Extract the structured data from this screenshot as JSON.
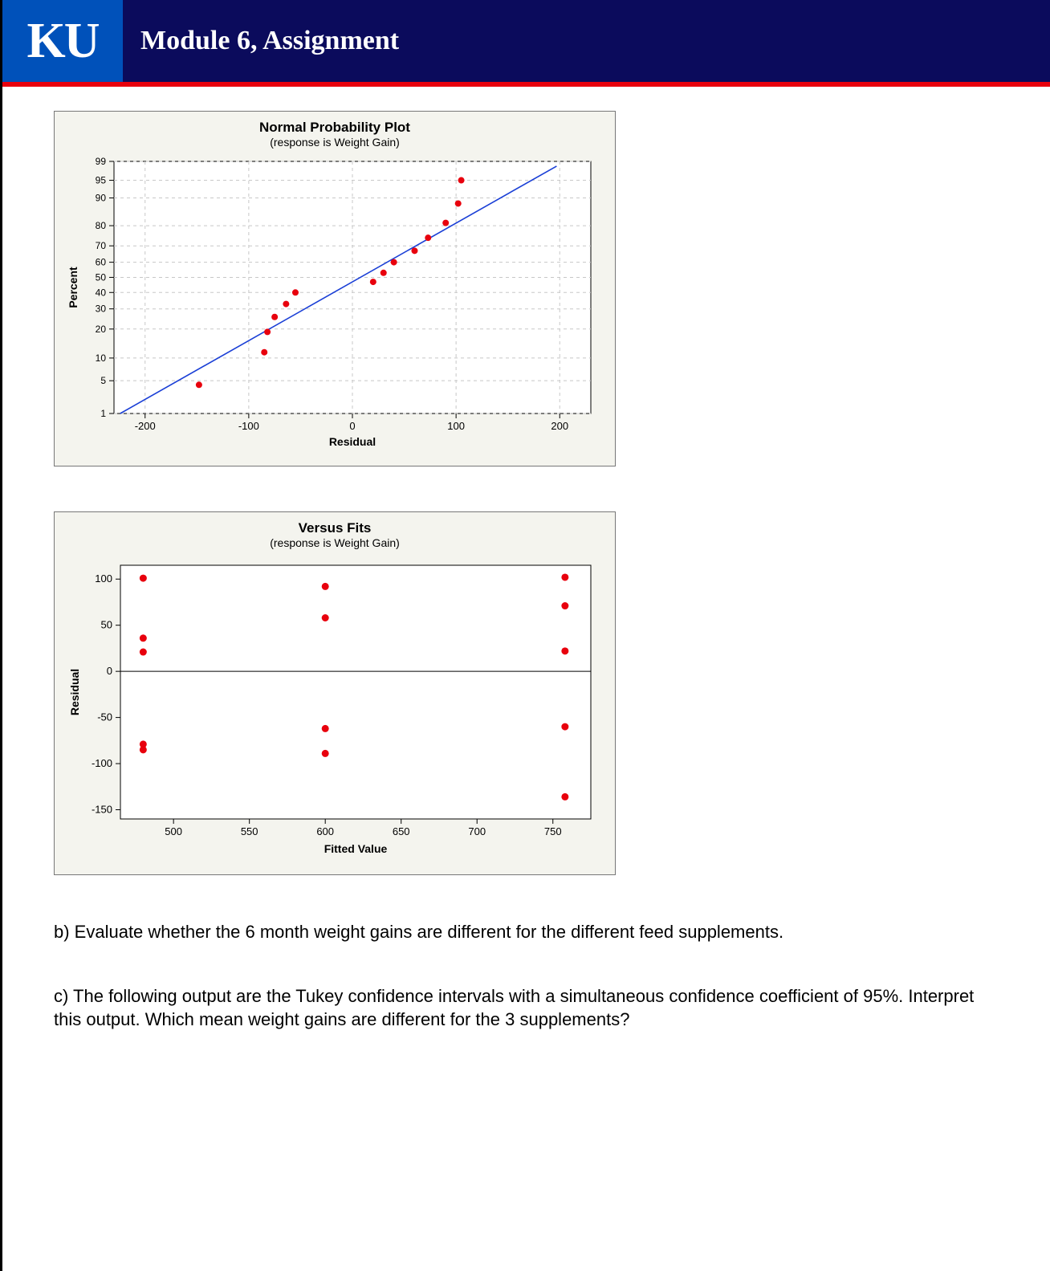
{
  "header": {
    "logo_text": "KU",
    "title": "Module 6, Assignment"
  },
  "chart1": {
    "type": "normal-probability-plot",
    "title": "Normal Probability Plot",
    "subtitle": "(response is Weight Gain)",
    "xlabel": "Residual",
    "ylabel": "Percent",
    "x_ticks": [
      -200,
      -100,
      0,
      100,
      200
    ],
    "y_ticks": [
      1,
      5,
      10,
      20,
      30,
      40,
      50,
      60,
      70,
      80,
      90,
      95,
      99
    ],
    "line_color": "#1a3fd6",
    "point_color": "#e8000d",
    "grid_color": "#c8c8c8",
    "background_color": "#f4f4ee",
    "plot_area_color": "#ffffff",
    "line": {
      "x1": -224,
      "p1": 1,
      "x2": 197,
      "p2": 98
    },
    "points": [
      {
        "x": -148,
        "p": 4.5
      },
      {
        "x": -85,
        "p": 12
      },
      {
        "x": -82,
        "p": 19
      },
      {
        "x": -75,
        "p": 26
      },
      {
        "x": -64,
        "p": 33
      },
      {
        "x": -55,
        "p": 40
      },
      {
        "x": 20,
        "p": 47
      },
      {
        "x": 30,
        "p": 53
      },
      {
        "x": 40,
        "p": 60
      },
      {
        "x": 60,
        "p": 67
      },
      {
        "x": 73,
        "p": 74
      },
      {
        "x": 90,
        "p": 81
      },
      {
        "x": 102,
        "p": 88
      },
      {
        "x": 105,
        "p": 95
      }
    ]
  },
  "chart2": {
    "type": "residual-vs-fits",
    "title": "Versus Fits",
    "subtitle": "(response is Weight Gain)",
    "xlabel": "Fitted Value",
    "ylabel": "Residual",
    "x_ticks": [
      500,
      550,
      600,
      650,
      700,
      750
    ],
    "y_ticks": [
      -150,
      -100,
      -50,
      0,
      50,
      100
    ],
    "zero_line_y": 0,
    "point_color": "#e8000d",
    "axis_color": "#000000",
    "background_color": "#f4f4ee",
    "plot_area_color": "#ffffff",
    "points": [
      {
        "x": 480,
        "y": 101
      },
      {
        "x": 480,
        "y": 36
      },
      {
        "x": 480,
        "y": 21
      },
      {
        "x": 480,
        "y": -79
      },
      {
        "x": 480,
        "y": -85
      },
      {
        "x": 600,
        "y": 92
      },
      {
        "x": 600,
        "y": 58
      },
      {
        "x": 600,
        "y": -62
      },
      {
        "x": 600,
        "y": -89
      },
      {
        "x": 758,
        "y": 102
      },
      {
        "x": 758,
        "y": 71
      },
      {
        "x": 758,
        "y": 22
      },
      {
        "x": 758,
        "y": -60
      },
      {
        "x": 758,
        "y": -136
      }
    ]
  },
  "questions": {
    "b": "b)  Evaluate whether the 6 month weight gains are different for the different feed supplements.",
    "c": "c)  The following output are the Tukey confidence intervals with a simultaneous confidence coefficient of 95%.  Interpret this output.  Which mean weight gains are different for the 3 supplements?"
  }
}
